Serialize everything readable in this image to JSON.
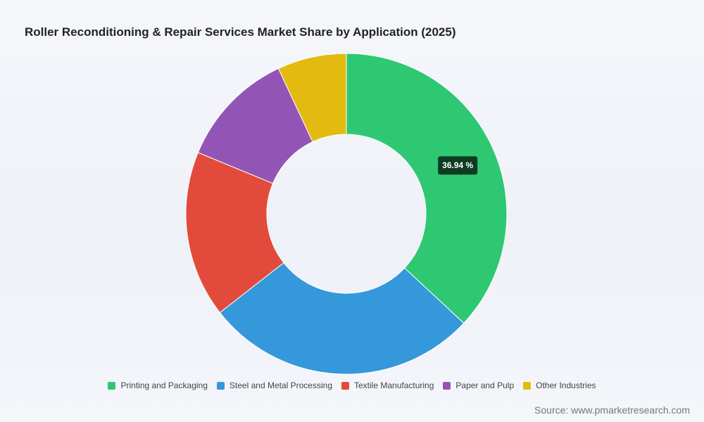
{
  "chart_data": {
    "type": "pie",
    "title": "Roller Reconditioning & Repair Services Market Share by Application (2025)",
    "categories": [
      "Printing and Packaging",
      "Steel and Metal Processing",
      "Textile Manufacturing",
      "Paper and Pulp",
      "Other Industries"
    ],
    "values": [
      36.94,
      27.5,
      16.8,
      11.8,
      6.96
    ],
    "colors": [
      "#2ec872",
      "#3498db",
      "#e24b3b",
      "#9355b5",
      "#e3bb10"
    ],
    "data_labels": [
      "36.94 %"
    ],
    "legend_position": "bottom",
    "donut": true
  },
  "footer": {
    "source": "Source: www.pmarketresearch.com"
  }
}
